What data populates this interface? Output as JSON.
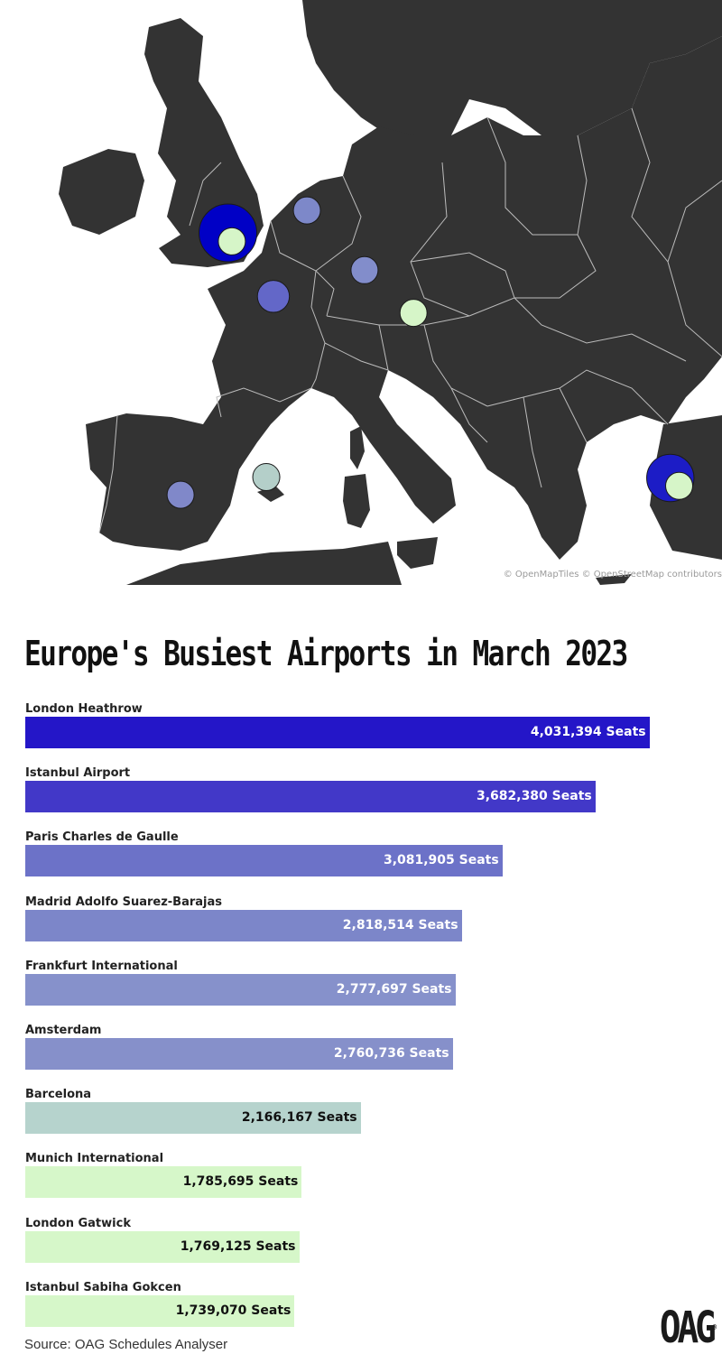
{
  "map": {
    "attribution": "© OpenMapTiles © OpenStreetMap contributors",
    "land_color": "#333333",
    "sea_color": "#ffffff",
    "border_color": "#bcbcbc",
    "markers": [
      {
        "airport": "London Heathrow",
        "color": "#0000c6",
        "lon": -0.45,
        "lat": 51.47
      },
      {
        "airport": "London Gatwick",
        "color": "#d6f5c8",
        "lon": -0.19,
        "lat": 51.15
      },
      {
        "airport": "Amsterdam",
        "color": "#7d88c9",
        "lon": 4.76,
        "lat": 52.31
      },
      {
        "airport": "Paris Charles de Gaulle",
        "color": "#6367c8",
        "lon": 2.55,
        "lat": 49.01
      },
      {
        "airport": "Frankfurt International",
        "color": "#828dcb",
        "lon": 8.56,
        "lat": 50.04
      },
      {
        "airport": "Munich International",
        "color": "#d6f5c8",
        "lon": 11.79,
        "lat": 48.35
      },
      {
        "airport": "Madrid Adolfo Suarez-Barajas",
        "color": "#8088c9",
        "lon": -3.57,
        "lat": 40.49
      },
      {
        "airport": "Barcelona",
        "color": "#b4cfc9",
        "lon": 2.08,
        "lat": 41.3
      },
      {
        "airport": "Istanbul Airport",
        "color": "#1c1cc6",
        "lon": 28.73,
        "lat": 41.26
      },
      {
        "airport": "Istanbul Sabiha Gokcen",
        "color": "#d6f5c8",
        "lon": 29.31,
        "lat": 40.9
      }
    ]
  },
  "chart_data": {
    "type": "bar",
    "orientation": "horizontal",
    "title": "Europe's Busiest Airports in March 2023",
    "categories": [
      "London Heathrow",
      "Istanbul Airport",
      "Paris Charles de Gaulle",
      "Madrid Adolfo Suarez-Barajas",
      "Frankfurt International",
      "Amsterdam",
      "Barcelona",
      "Munich International",
      "London Gatwick",
      "Istanbul Sabiha Gokcen"
    ],
    "values": [
      4031394,
      3682380,
      3081905,
      2818514,
      2777697,
      2760736,
      2166167,
      1785695,
      1769125,
      1739070
    ],
    "value_labels": [
      "4,031,394 Seats",
      "3,682,380 Seats",
      "3,081,905 Seats",
      "2,818,514 Seats",
      "2,777,697 Seats",
      "2,760,736 Seats",
      "2,166,167 Seats",
      "1,785,695 Seats",
      "1,769,125 Seats",
      "1,739,070 Seats"
    ],
    "colors": [
      "#2416c8",
      "#4238c8",
      "#6c72c8",
      "#7c86c9",
      "#8691cb",
      "#8690ca",
      "#b6d3cd",
      "#d6f7c9",
      "#d6f7c9",
      "#d6f7c9"
    ],
    "label_colors": [
      "#ffffff",
      "#ffffff",
      "#ffffff",
      "#ffffff",
      "#ffffff",
      "#ffffff",
      "#111111",
      "#111111",
      "#111111",
      "#111111"
    ],
    "xlim": [
      0,
      4500000
    ],
    "grid": false,
    "legend": false
  },
  "source": "Source: OAG Schedules Analyser",
  "logo": {
    "text": "OAG",
    "mark": "®"
  }
}
